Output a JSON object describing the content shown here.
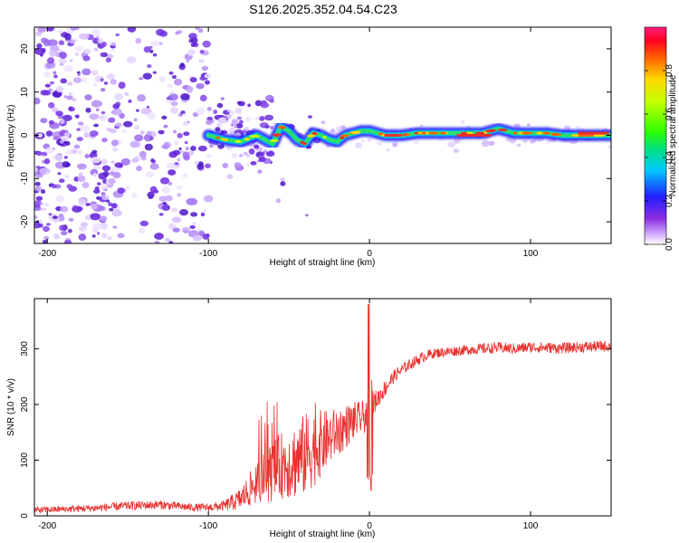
{
  "title": "S126.2025.352.04.54.C23",
  "colors": {
    "snr_line": "#e8302d",
    "ridge_core": "#e8302d",
    "scatter": "#6a1fd6"
  },
  "chart_data": [
    {
      "type": "heatmap",
      "name": "spectrogram",
      "xlabel": "Height of straight line (km)",
      "ylabel": "Frequency (Hz)",
      "xlim": [
        -208,
        150
      ],
      "ylim": [
        -25,
        25
      ],
      "xticks": [
        -200,
        -100,
        0,
        100
      ],
      "yticks": [
        -20,
        -10,
        0,
        10,
        20
      ],
      "ridge": {
        "description": "narrow band near 0 Hz from about -100 km to 150 km",
        "points": [
          [
            -100,
            0
          ],
          [
            -90,
            -1
          ],
          [
            -80,
            -1.5
          ],
          [
            -70,
            0
          ],
          [
            -60,
            -2
          ],
          [
            -55,
            2
          ],
          [
            -50,
            1
          ],
          [
            -45,
            -1
          ],
          [
            -40,
            -2
          ],
          [
            -35,
            0.5
          ],
          [
            -30,
            0
          ],
          [
            -25,
            -1
          ],
          [
            -20,
            -1.5
          ],
          [
            -15,
            0
          ],
          [
            -10,
            0.5
          ],
          [
            -5,
            1
          ],
          [
            0,
            1
          ],
          [
            5,
            0.5
          ],
          [
            10,
            0
          ],
          [
            20,
            0
          ],
          [
            30,
            0.5
          ],
          [
            40,
            0.5
          ],
          [
            50,
            0.5
          ],
          [
            60,
            0.5
          ],
          [
            70,
            0.5
          ],
          [
            80,
            1.5
          ],
          [
            90,
            0.5
          ],
          [
            100,
            0.5
          ],
          [
            110,
            0.5
          ],
          [
            120,
            0
          ],
          [
            130,
            0
          ],
          [
            140,
            0
          ],
          [
            150,
            0
          ]
        ]
      },
      "colorbar": {
        "label": "Normalized spectral amplitude",
        "range": [
          0,
          1
        ],
        "ticks": [
          0.0,
          0.2,
          0.4,
          0.6,
          0.8
        ],
        "tick_labels": [
          "0.0",
          "0.2",
          "0.4",
          "0.6",
          "0.8"
        ]
      }
    },
    {
      "type": "line",
      "name": "snr",
      "xlabel": "Height of straight line (km)",
      "ylabel": "SNR (10 * v/v)",
      "xlim": [
        -208,
        150
      ],
      "ylim": [
        0,
        390
      ],
      "xticks": [
        -200,
        -100,
        0,
        100
      ],
      "yticks": [
        0,
        100,
        200,
        300
      ],
      "series": [
        {
          "name": "SNR",
          "x": [
            -208,
            -190,
            -170,
            -150,
            -130,
            -110,
            -100,
            -90,
            -80,
            -75,
            -70,
            -65,
            -60,
            -55,
            -50,
            -45,
            -40,
            -35,
            -30,
            -25,
            -20,
            -15,
            -10,
            -5,
            -2,
            0,
            2,
            5,
            10,
            15,
            20,
            25,
            30,
            35,
            40,
            50,
            60,
            70,
            80,
            90,
            100,
            110,
            120,
            130,
            140,
            150
          ],
          "values": [
            10,
            12,
            14,
            18,
            20,
            15,
            15,
            18,
            30,
            45,
            60,
            70,
            80,
            90,
            95,
            100,
            110,
            120,
            130,
            140,
            150,
            160,
            170,
            175,
            180,
            380,
            200,
            210,
            230,
            250,
            262,
            272,
            280,
            288,
            292,
            295,
            298,
            300,
            302,
            300,
            303,
            302,
            301,
            303,
            304,
            305
          ],
          "noise_amplitude": [
            6,
            6,
            7,
            8,
            8,
            7,
            7,
            10,
            20,
            30,
            40,
            45,
            55,
            60,
            65,
            70,
            75,
            70,
            60,
            50,
            45,
            40,
            35,
            30,
            30,
            0,
            25,
            18,
            15,
            12,
            11,
            10,
            10,
            10,
            9,
            9,
            9,
            10,
            10,
            10,
            10,
            10,
            10,
            10,
            10,
            10
          ]
        }
      ]
    }
  ]
}
